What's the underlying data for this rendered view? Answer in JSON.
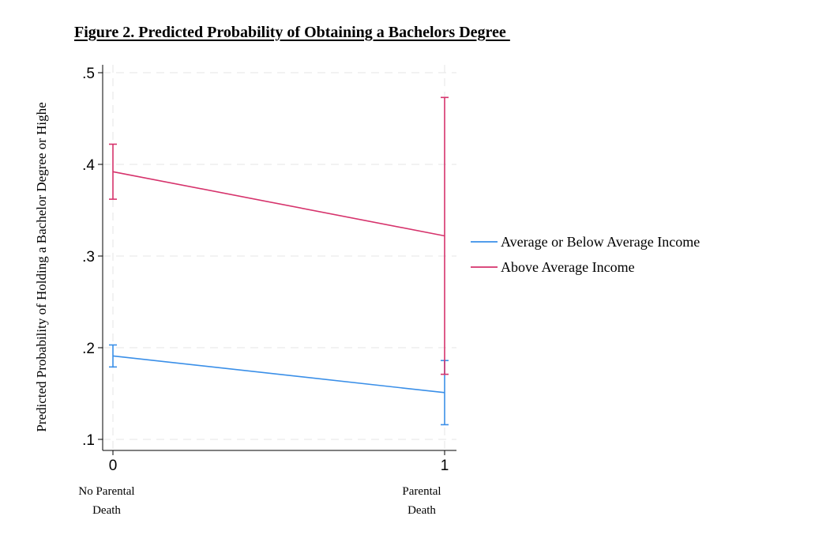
{
  "chart_data": {
    "type": "line",
    "title": "Figure 2. Predicted Probability of Obtaining a Bachelors Degree ",
    "ylabel": "Predicted Probability of Holding a Bachelor Degree or Highe",
    "xlabel": "",
    "x": [
      0,
      1
    ],
    "x_tick_labels": [
      "0",
      "1"
    ],
    "x_category_labels": [
      [
        "No Parental",
        "Death"
      ],
      [
        "Parental",
        "Death"
      ]
    ],
    "y_ticks": [
      0.1,
      0.2,
      0.3,
      0.4,
      0.5
    ],
    "y_tick_labels": [
      ".1",
      ".2",
      ".3",
      ".4",
      ".5"
    ],
    "ylim": [
      0.1,
      0.5
    ],
    "grid": true,
    "legend_placement": "right",
    "series": [
      {
        "name": "Average or Below Average Income",
        "color": "#3a8fe8",
        "values": [
          0.191,
          0.151
        ],
        "ci_low": [
          0.179,
          0.116
        ],
        "ci_high": [
          0.203,
          0.186
        ]
      },
      {
        "name": "Above Average Income",
        "color": "#d6336c",
        "values": [
          0.392,
          0.322
        ],
        "ci_low": [
          0.362,
          0.171
        ],
        "ci_high": [
          0.422,
          0.473
        ]
      }
    ]
  }
}
